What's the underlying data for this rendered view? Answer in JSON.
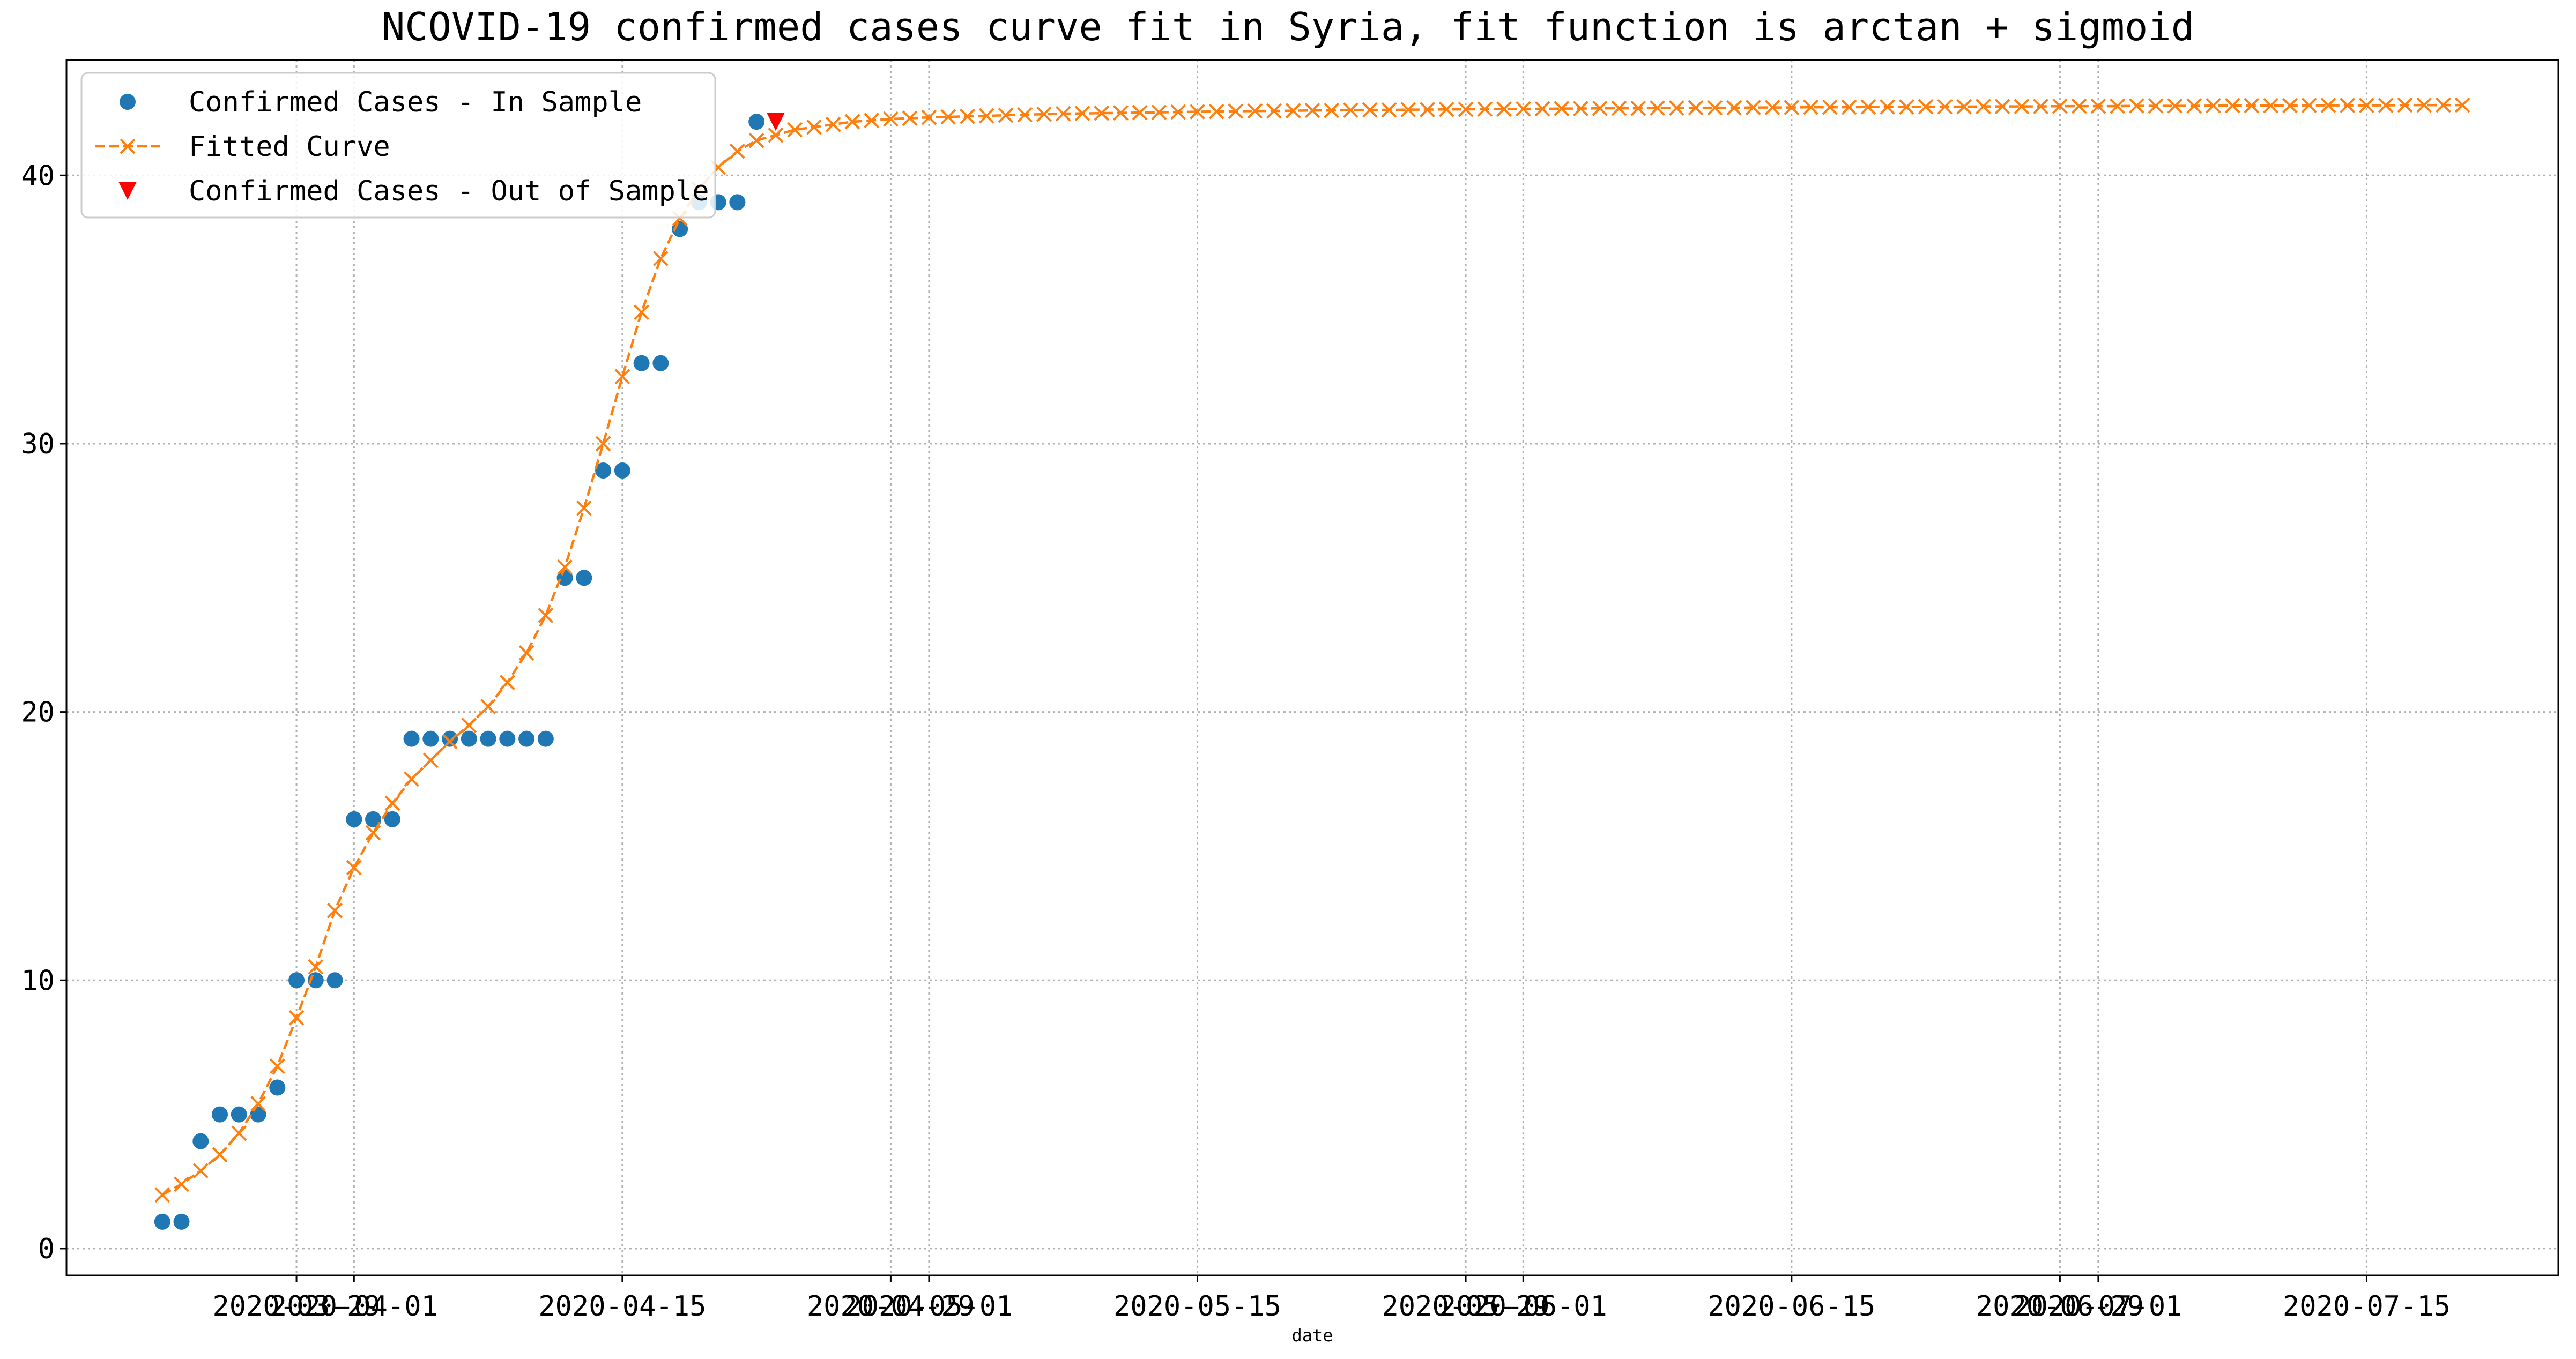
{
  "chart_data": {
    "type": "line",
    "title": "NCOVID-19 confirmed cases curve fit in Syria, fit function is arctan + sigmoid",
    "xlabel": "date",
    "ylabel": "",
    "grid": true,
    "legend_position": "top-left",
    "ylim": [
      -1,
      44.3
    ],
    "xlim": [
      "2020-03-17",
      "2020-07-25"
    ],
    "x_ticks": [
      "2020-03-29",
      "2020-04-01",
      "2020-04-15",
      "2020-04-29",
      "2020-05-01",
      "2020-05-15",
      "2020-05-29",
      "2020-06-01",
      "2020-06-15",
      "2020-06-29",
      "2020-07-01",
      "2020-07-15"
    ],
    "y_ticks": [
      0,
      10,
      20,
      30,
      40
    ],
    "series": [
      {
        "name": "Confirmed Cases - In Sample",
        "color": "#1f77b4",
        "marker": "circle",
        "dates": [
          "2020-03-22",
          "2020-03-23",
          "2020-03-24",
          "2020-03-25",
          "2020-03-26",
          "2020-03-27",
          "2020-03-28",
          "2020-03-29",
          "2020-03-30",
          "2020-03-31",
          "2020-04-01",
          "2020-04-02",
          "2020-04-03",
          "2020-04-04",
          "2020-04-05",
          "2020-04-06",
          "2020-04-07",
          "2020-04-08",
          "2020-04-09",
          "2020-04-10",
          "2020-04-11",
          "2020-04-12",
          "2020-04-13",
          "2020-04-14",
          "2020-04-15",
          "2020-04-16",
          "2020-04-17",
          "2020-04-18",
          "2020-04-19",
          "2020-04-20",
          "2020-04-21",
          "2020-04-22"
        ],
        "values": [
          1,
          1,
          4,
          5,
          5,
          5,
          6,
          10,
          10,
          10,
          16,
          16,
          16,
          19,
          19,
          19,
          19,
          19,
          19,
          19,
          19,
          25,
          25,
          29,
          29,
          33,
          33,
          38,
          39,
          39,
          39,
          42
        ]
      },
      {
        "name": "Fitted Curve",
        "color": "#ff7f0e",
        "marker": "x",
        "line_style": "dashed",
        "start_date": "2020-03-22",
        "end_date": "2020-07-21",
        "values": [
          2.0,
          2.4,
          2.9,
          3.5,
          4.3,
          5.4,
          6.8,
          8.6,
          10.5,
          12.6,
          14.2,
          15.5,
          16.6,
          17.5,
          18.2,
          18.9,
          19.5,
          20.2,
          21.1,
          22.2,
          23.6,
          25.4,
          27.6,
          30.0,
          32.5,
          34.9,
          36.9,
          38.4,
          39.5,
          40.3,
          40.9,
          41.3,
          41.5,
          41.7,
          41.8,
          41.9,
          42.0,
          42.05,
          42.1,
          42.13,
          42.16,
          42.18,
          42.2,
          42.22,
          42.24,
          42.26,
          42.28,
          42.3,
          42.31,
          42.32,
          42.33,
          42.34,
          42.35,
          42.36,
          42.37,
          42.38,
          42.39,
          42.4,
          42.4,
          42.41,
          42.42,
          42.42,
          42.43,
          42.44,
          42.44,
          42.45,
          42.45,
          42.46,
          42.46,
          42.47,
          42.47,
          42.48,
          42.48,
          42.49,
          42.49,
          42.5,
          42.5,
          42.5,
          42.51,
          42.51,
          42.52,
          42.52,
          42.52,
          42.53,
          42.53,
          42.53,
          42.54,
          42.54,
          42.54,
          42.55,
          42.55,
          42.55,
          42.56,
          42.56,
          42.56,
          42.57,
          42.57,
          42.57,
          42.57,
          42.58,
          42.58,
          42.58,
          42.58,
          42.59,
          42.59,
          42.59,
          42.59,
          42.6,
          42.6,
          42.6,
          42.6,
          42.6,
          42.61,
          42.61,
          42.61,
          42.61,
          42.61,
          42.62,
          42.62,
          42.62,
          42.62
        ]
      },
      {
        "name": "Confirmed Cases - Out of Sample",
        "color": "#ff0000",
        "marker": "triangle-down",
        "dates": [
          "2020-04-23"
        ],
        "values": [
          42
        ]
      }
    ]
  }
}
